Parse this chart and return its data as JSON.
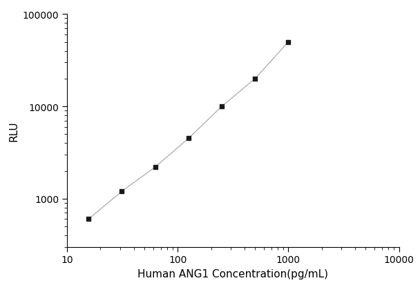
{
  "x_values": [
    15.6,
    31.2,
    62.5,
    125,
    250,
    500,
    1000
  ],
  "y_values": [
    600,
    1200,
    2200,
    4500,
    10000,
    20000,
    50000
  ],
  "xlabel": "Human ANG1 Concentration(pg/mL)",
  "ylabel": "RLU",
  "xlim": [
    10,
    10000
  ],
  "ylim_low": 300,
  "ylim_high": 100000,
  "marker_color": "#1a1a1a",
  "line_color": "#aaaaaa",
  "marker_size": 5,
  "line_width": 0.9,
  "background_color": "#ffffff",
  "font_size_label": 11,
  "font_size_tick": 10
}
